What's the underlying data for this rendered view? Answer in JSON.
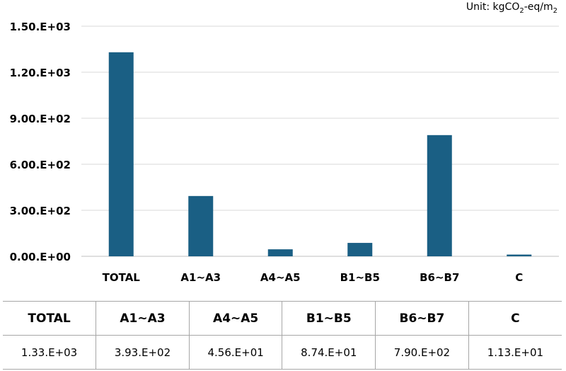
{
  "unit": {
    "prefix": "Unit: ",
    "p1": "kgCO",
    "s1": "2",
    "p2": "-eq/m",
    "s2": "2"
  },
  "chart_data": {
    "type": "bar",
    "title": "",
    "xlabel": "",
    "ylabel": "",
    "categories": [
      "TOTAL",
      "A1~A3",
      "A4~A5",
      "B1~B5",
      "B6~B7",
      "C"
    ],
    "values": [
      1330,
      393,
      45.6,
      87.4,
      790,
      11.3
    ],
    "ylim": [
      0,
      1500
    ],
    "yticks": [
      0,
      300,
      600,
      900,
      1200,
      1500
    ],
    "ytick_labels": [
      "0.00.E+00",
      "3.00.E+02",
      "6.00.E+02",
      "9.00.E+02",
      "1.20.E+03",
      "1.50.E+03"
    ],
    "grid": true,
    "bar_color": "#1a5f84"
  },
  "table": {
    "headers": [
      "TOTAL",
      "A1~A3",
      "A4~A5",
      "B1~B5",
      "B6~B7",
      "C"
    ],
    "values": [
      "1.33.E+03",
      "3.93.E+02",
      "4.56.E+01",
      "8.74.E+01",
      "7.90.E+02",
      "1.13.E+01"
    ]
  }
}
